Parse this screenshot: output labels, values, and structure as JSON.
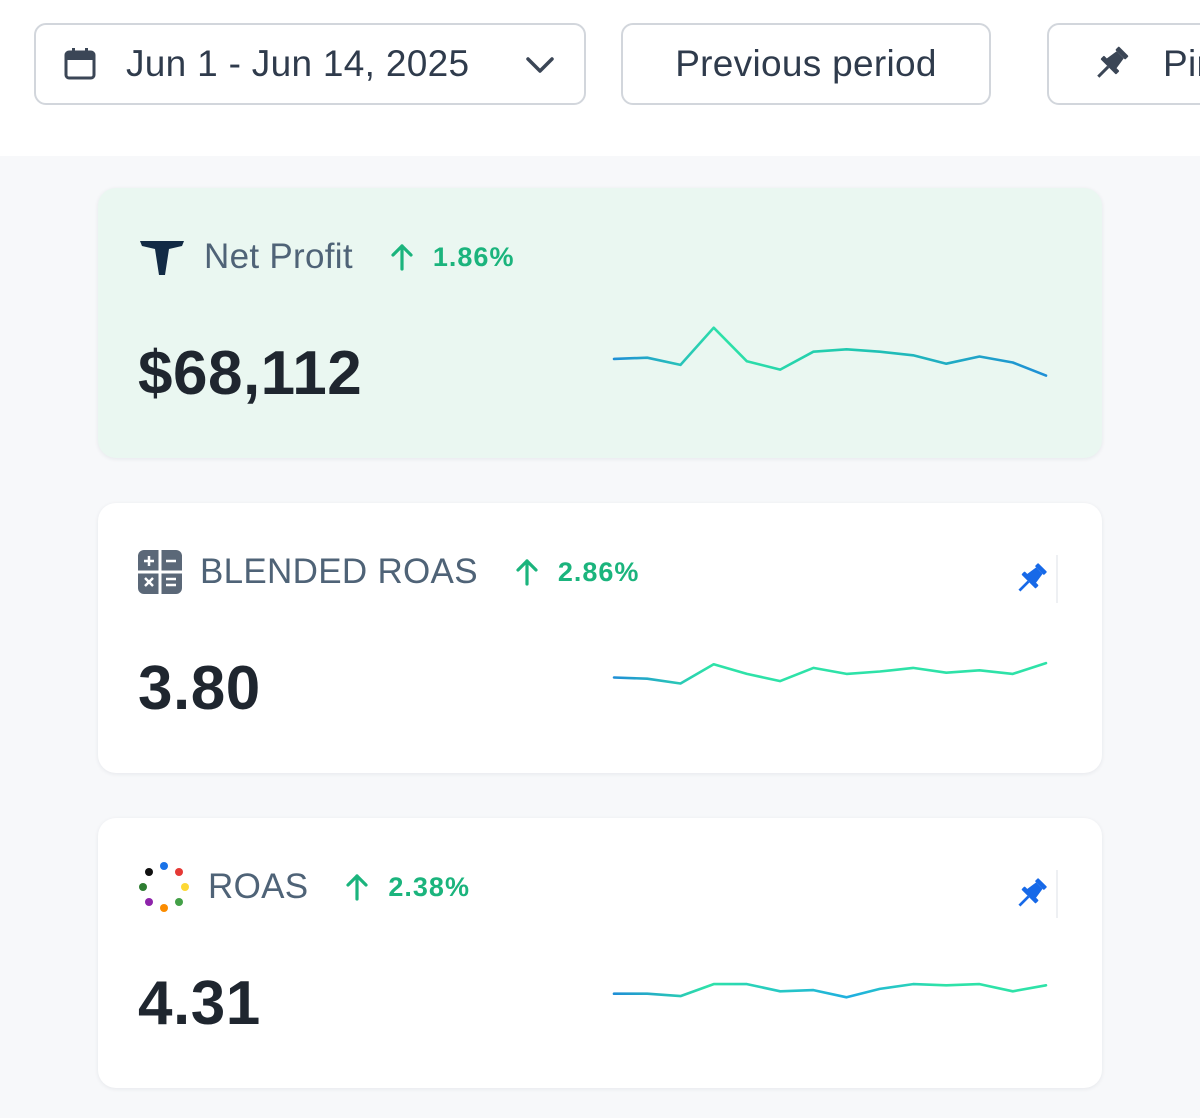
{
  "toolbar": {
    "date_range": "Jun 1 - Jun 14, 2025",
    "compare_label": "Previous period",
    "pin_label": "Pin"
  },
  "metrics": [
    {
      "title": "Net Profit",
      "change": "1.86%",
      "value": "$68,112",
      "icon": "triple-whale-logo",
      "active": true,
      "pinned": false,
      "trend": [
        3.6,
        3.7,
        3.1,
        6.2,
        3.4,
        2.7,
        4.2,
        4.4,
        4.2,
        3.9,
        3.2,
        3.8,
        3.3,
        2.2
      ]
    },
    {
      "title": "BLENDED ROAS",
      "change": "2.86%",
      "value": "3.80",
      "icon": "calculator-icon",
      "active": false,
      "pinned": true,
      "trend": [
        3.3,
        3.2,
        2.8,
        4.4,
        3.6,
        3.0,
        4.1,
        3.6,
        3.8,
        4.1,
        3.7,
        3.9,
        3.6,
        4.5
      ]
    },
    {
      "title": "ROAS",
      "change": "2.38%",
      "value": "4.31",
      "icon": "multicolor-dots-icon",
      "active": false,
      "pinned": true,
      "trend": [
        3.2,
        3.2,
        3.0,
        4.0,
        4.0,
        3.4,
        3.5,
        2.9,
        3.6,
        4.0,
        3.9,
        4.0,
        3.4,
        3.9
      ]
    }
  ],
  "colors": {
    "positive": "#1bb47d",
    "spark_start": "#1f8fd6",
    "spark_mid": "#2ee2a8",
    "pin_active": "#1769e8",
    "active_card_bg": "#eaf7f1"
  }
}
